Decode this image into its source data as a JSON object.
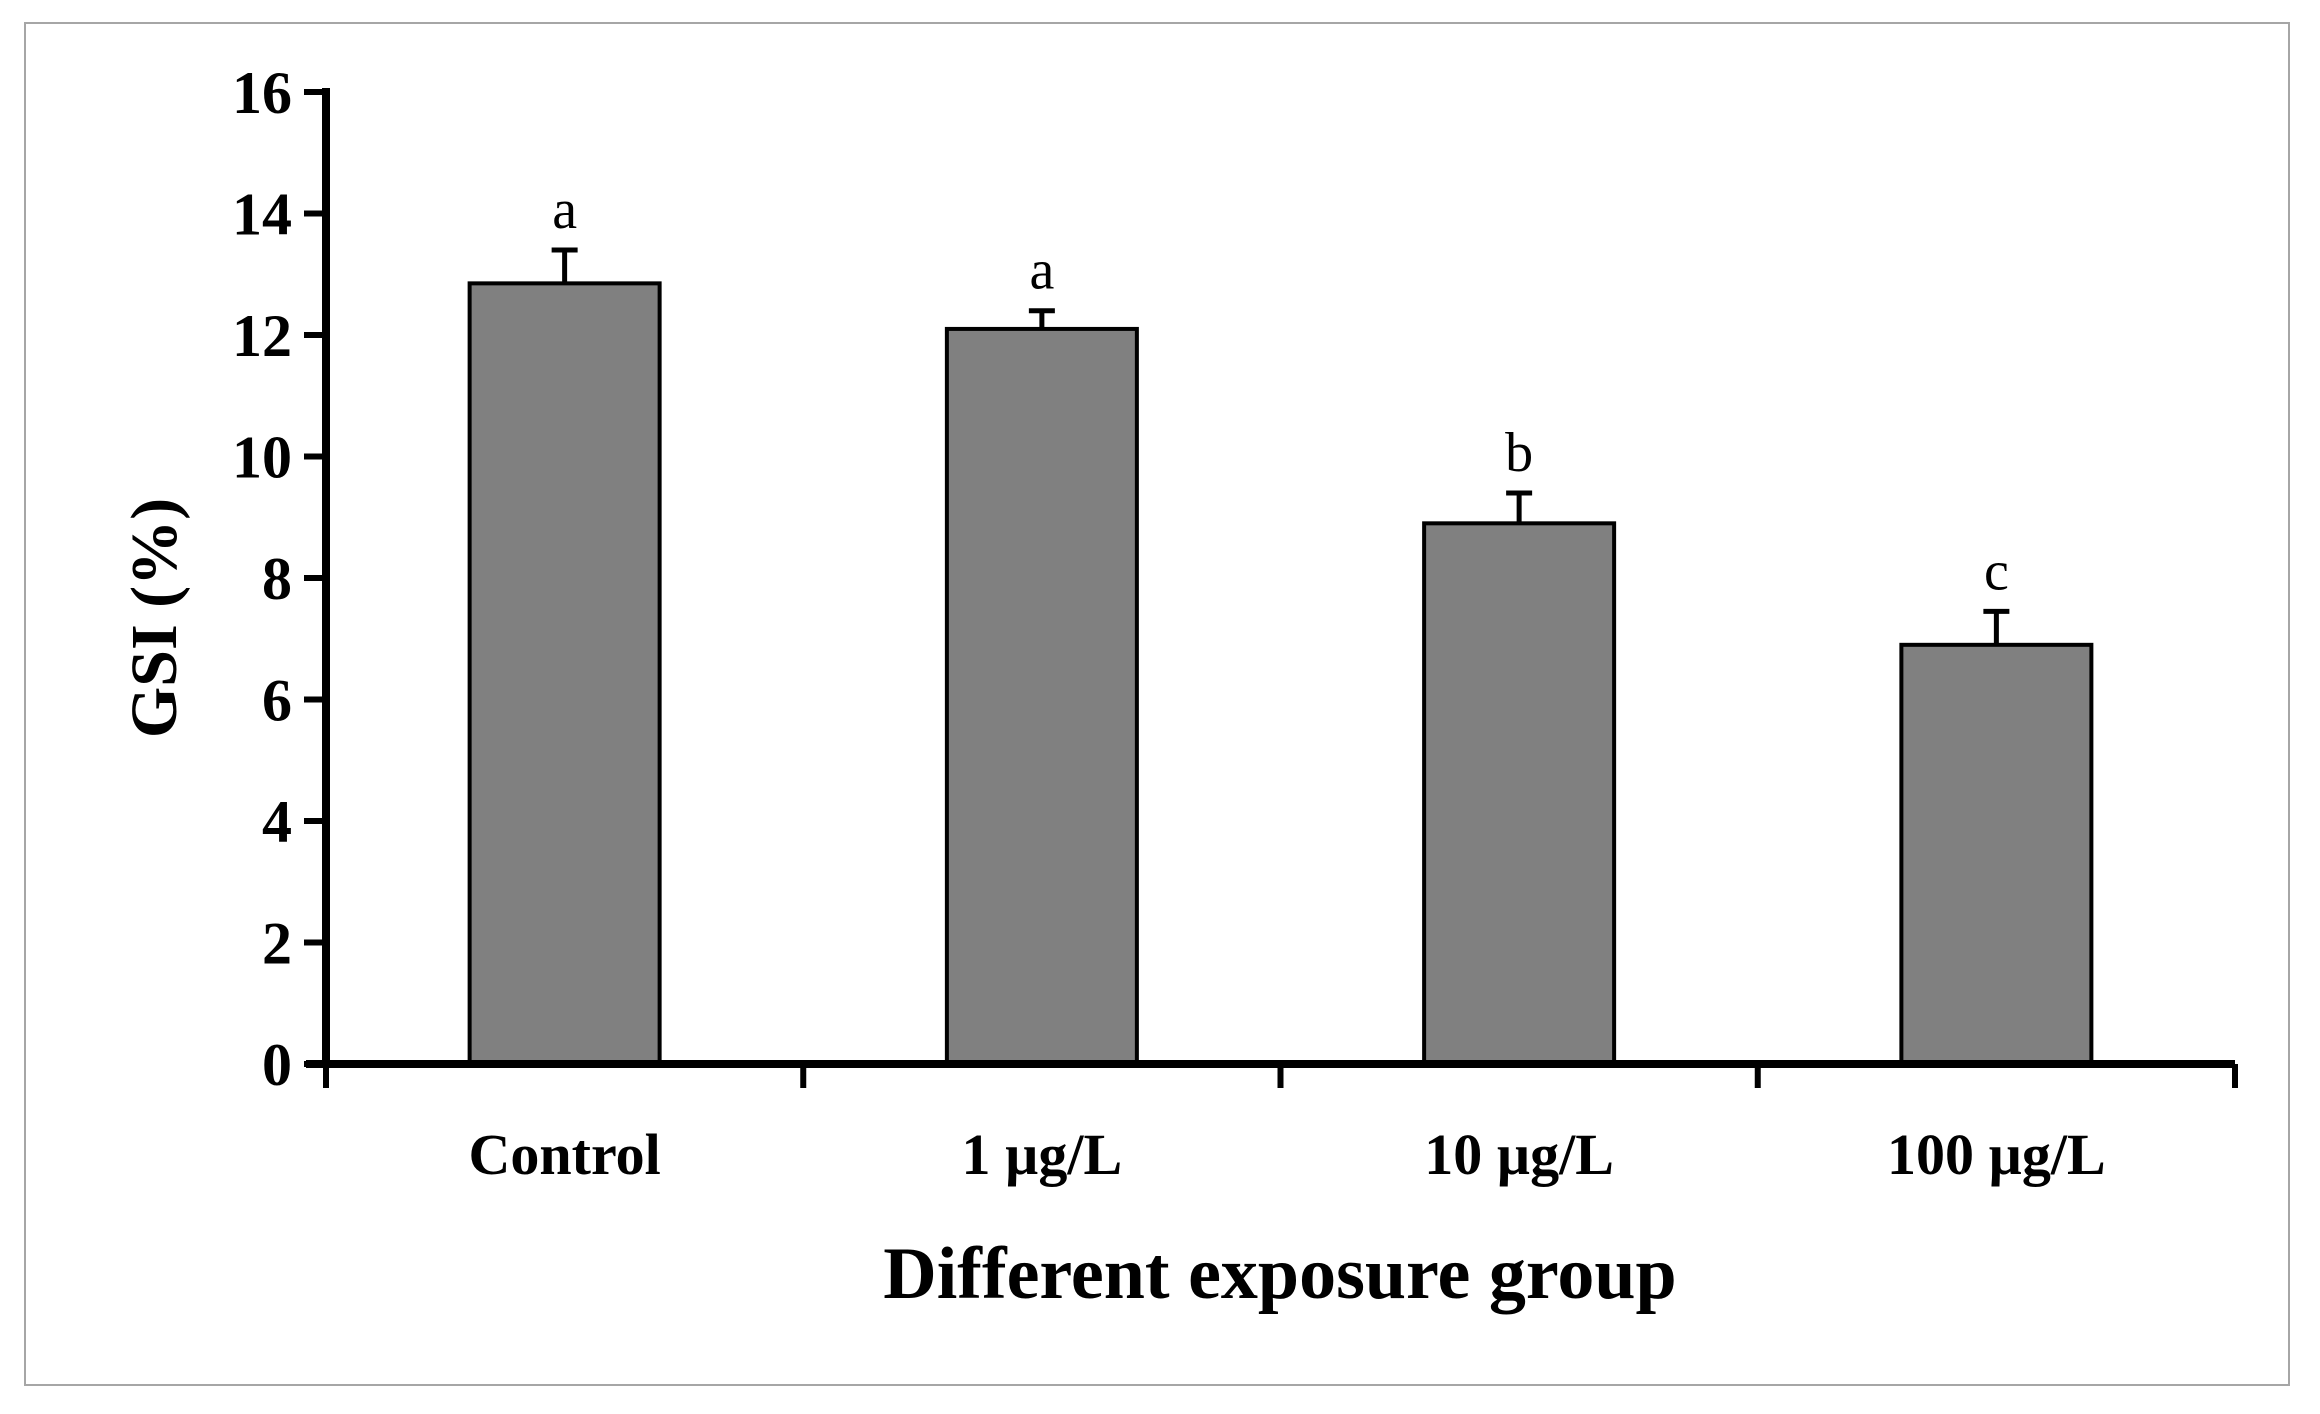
{
  "chart_data": {
    "type": "bar",
    "title": "",
    "xlabel": "Different exposure group",
    "ylabel": "GSI (%)",
    "categories": [
      "Control",
      "1 µg/L",
      "10 µg/L",
      "100 µg/L"
    ],
    "values": [
      12.85,
      12.1,
      8.9,
      6.9
    ],
    "errors": [
      0.55,
      0.3,
      0.5,
      0.55
    ],
    "significance": [
      "a",
      "a",
      "b",
      "c"
    ],
    "ylim": [
      0,
      16
    ],
    "yticks": [
      0,
      2,
      4,
      6,
      8,
      10,
      12,
      14,
      16
    ],
    "ytick_labels": [
      "0",
      "2",
      "4",
      "6",
      "8",
      "10",
      "12",
      "14",
      "16"
    ],
    "grid": false,
    "bar_color": "#808080",
    "edge_color": "#000000"
  }
}
